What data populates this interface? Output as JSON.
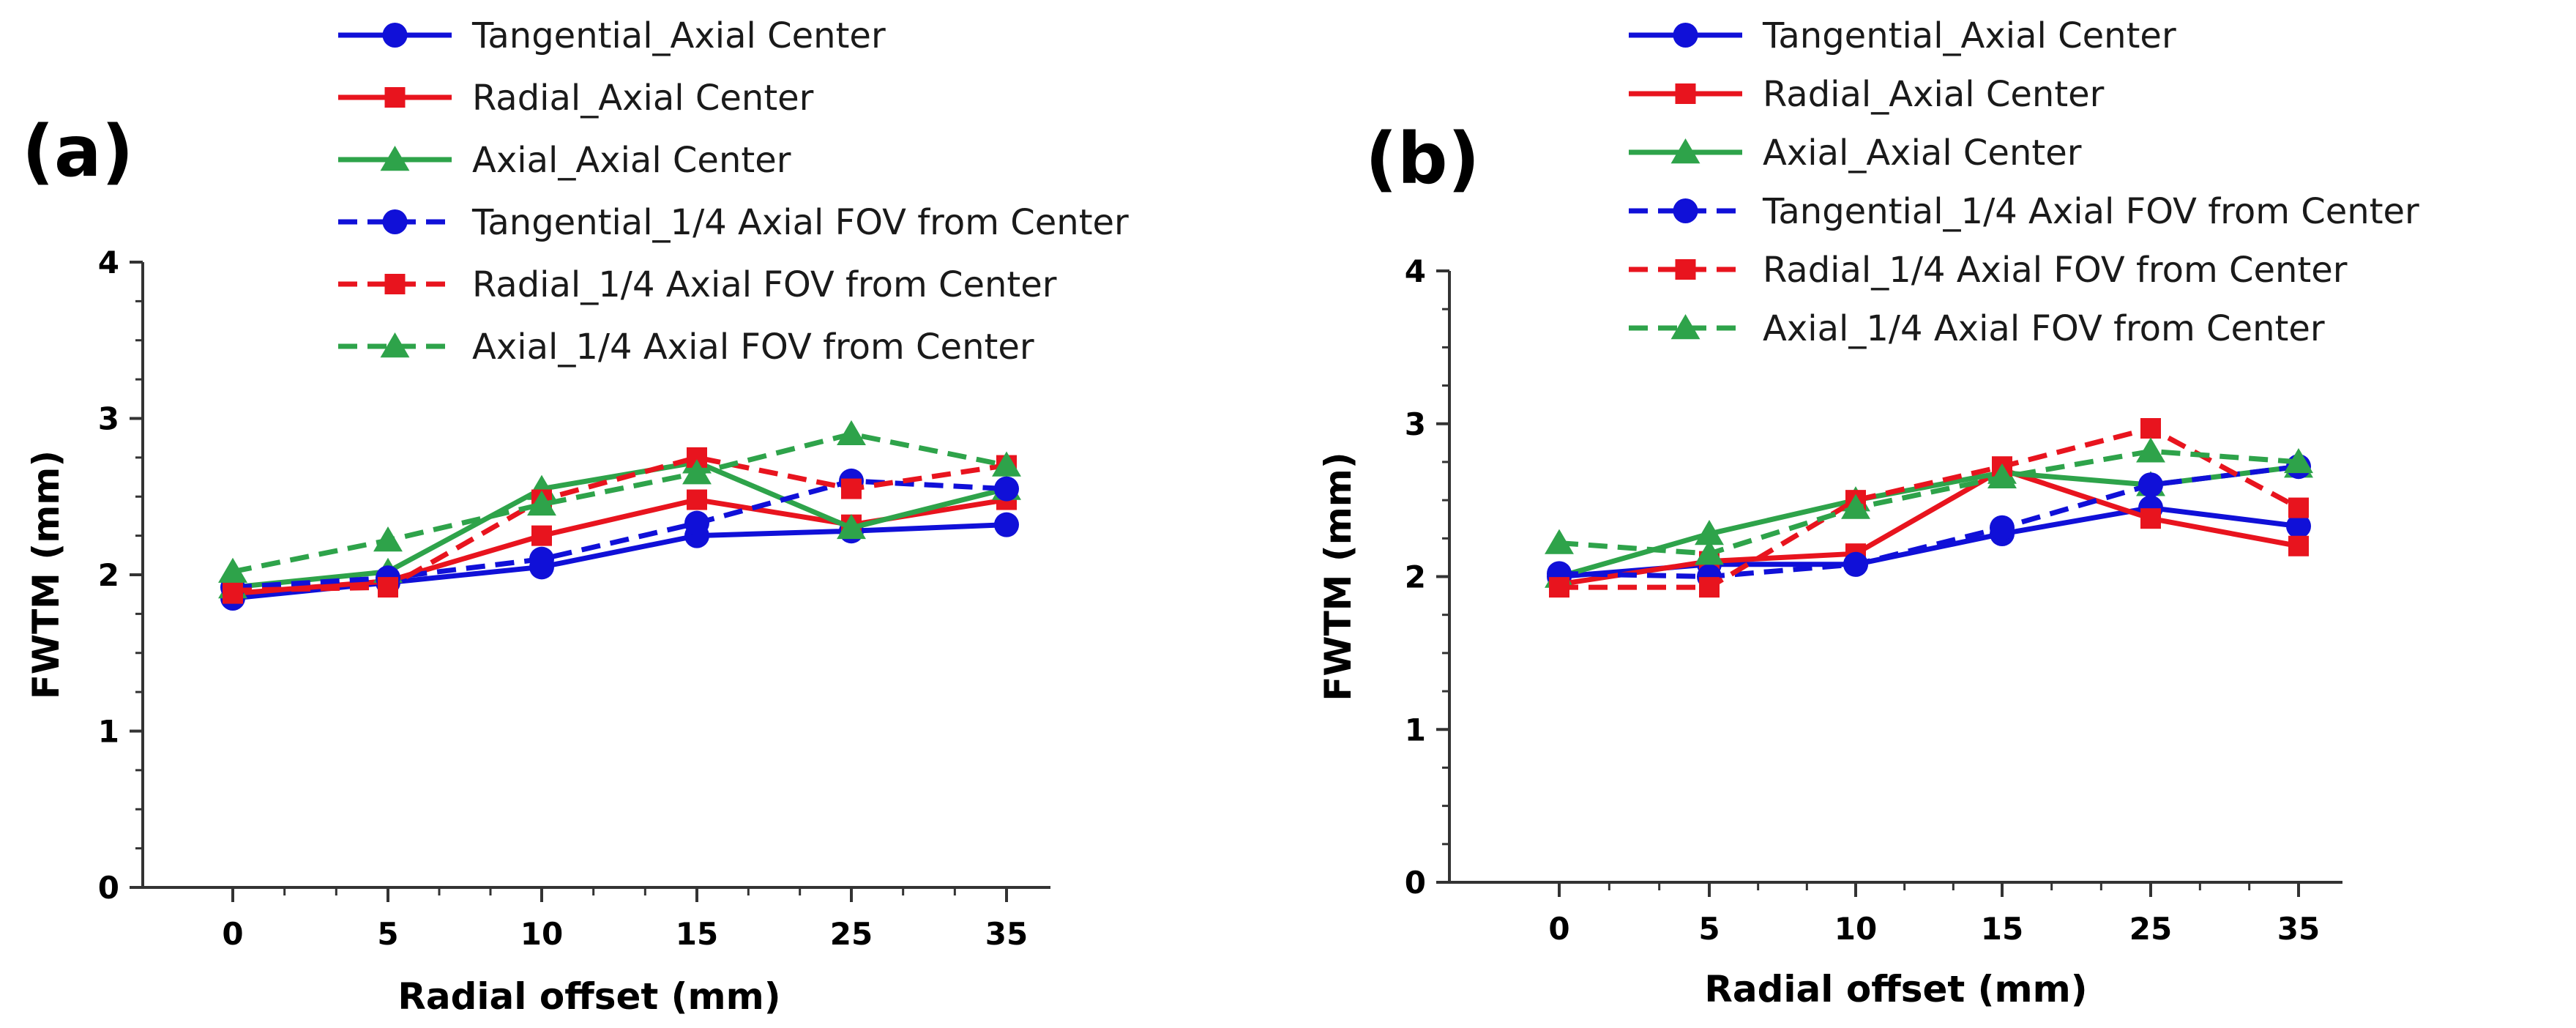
{
  "chart_data": [
    {
      "type": "line",
      "panel_label": "(a)",
      "xlabel": "Radial offset (mm)",
      "ylabel": "FWTM (mm)",
      "categories": [
        "0",
        "5",
        "10",
        "15",
        "25",
        "35"
      ],
      "ylim": [
        0,
        4
      ],
      "yticks": [
        "0",
        "1",
        "2",
        "3",
        "4"
      ],
      "legend_position": "top",
      "series": [
        {
          "name": "Tangential_Axial Center",
          "color": "#1010d8",
          "dash": "solid",
          "marker": "circle",
          "values": [
            1.85,
            1.95,
            2.05,
            2.25,
            2.28,
            2.32
          ]
        },
        {
          "name": "Radial_Axial Center",
          "color": "#e8141e",
          "dash": "solid",
          "marker": "square",
          "values": [
            1.88,
            1.96,
            2.25,
            2.48,
            2.32,
            2.48
          ]
        },
        {
          "name": "Axial_Axial Center",
          "color": "#2ea34a",
          "dash": "solid",
          "marker": "triangle",
          "values": [
            1.92,
            2.02,
            2.55,
            2.72,
            2.3,
            2.55
          ]
        },
        {
          "name": "Tangential_1/4 Axial FOV from Center",
          "color": "#1010d8",
          "dash": "dashed",
          "marker": "circle",
          "values": [
            1.92,
            1.98,
            2.1,
            2.33,
            2.6,
            2.55
          ]
        },
        {
          "name": "Radial_1/4 Axial FOV from Center",
          "color": "#e8141e",
          "dash": "dashed",
          "marker": "square",
          "values": [
            1.9,
            1.92,
            2.48,
            2.75,
            2.55,
            2.7
          ]
        },
        {
          "name": "Axial_1/4 Axial FOV from Center",
          "color": "#2ea34a",
          "dash": "dashed",
          "marker": "triangle",
          "values": [
            2.02,
            2.22,
            2.45,
            2.65,
            2.9,
            2.7
          ]
        }
      ]
    },
    {
      "type": "line",
      "panel_label": "(b)",
      "xlabel": "Radial offset (mm)",
      "ylabel": "FWTM (mm)",
      "categories": [
        "0",
        "5",
        "10",
        "15",
        "25",
        "35"
      ],
      "ylim": [
        0,
        4
      ],
      "yticks": [
        "0",
        "1",
        "2",
        "3",
        "4"
      ],
      "legend_position": "top",
      "series": [
        {
          "name": "Tangential_Axial Center",
          "color": "#1010d8",
          "dash": "solid",
          "marker": "circle",
          "values": [
            2.0,
            2.08,
            2.08,
            2.28,
            2.45,
            2.33
          ]
        },
        {
          "name": "Radial_Axial Center",
          "color": "#e8141e",
          "dash": "solid",
          "marker": "square",
          "values": [
            1.95,
            2.1,
            2.15,
            2.7,
            2.38,
            2.2
          ]
        },
        {
          "name": "Axial_Axial Center",
          "color": "#2ea34a",
          "dash": "solid",
          "marker": "triangle",
          "values": [
            2.0,
            2.28,
            2.5,
            2.68,
            2.6,
            2.72
          ]
        },
        {
          "name": "Tangential_1/4 Axial FOV from Center",
          "color": "#1010d8",
          "dash": "dashed",
          "marker": "circle",
          "values": [
            2.02,
            2.0,
            2.08,
            2.32,
            2.6,
            2.72
          ]
        },
        {
          "name": "Radial_1/4 Axial FOV from Center",
          "color": "#e8141e",
          "dash": "dashed",
          "marker": "square",
          "values": [
            1.93,
            1.93,
            2.5,
            2.72,
            2.97,
            2.45
          ]
        },
        {
          "name": "Axial_1/4 Axial FOV from Center",
          "color": "#2ea34a",
          "dash": "dashed",
          "marker": "triangle",
          "values": [
            2.22,
            2.15,
            2.45,
            2.65,
            2.82,
            2.75
          ]
        }
      ]
    }
  ]
}
